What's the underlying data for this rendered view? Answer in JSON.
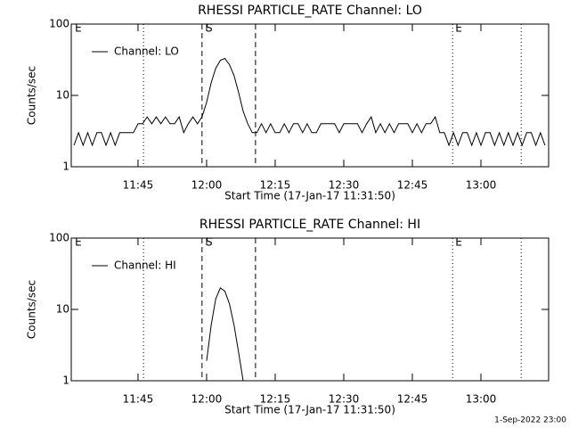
{
  "chart_data": [
    {
      "type": "line",
      "title": "RHESSI PARTICLE_RATE Channel: LO",
      "xlabel": "Start Time (17-Jan-17 11:31:50)",
      "ylabel": "Counts/sec",
      "log_y": true,
      "ylim": [
        1,
        100
      ],
      "yticks": [
        1,
        10,
        100
      ],
      "xlim": [
        690.4,
        794.8
      ],
      "xticks": [
        {
          "value": 705,
          "label": "11:45"
        },
        {
          "value": 720,
          "label": "12:00"
        },
        {
          "value": 735,
          "label": "12:15"
        },
        {
          "value": 750,
          "label": "12:30"
        },
        {
          "value": 765,
          "label": "12:45"
        },
        {
          "value": 780,
          "label": "13:00"
        }
      ],
      "legend": "upper left",
      "vlines": [
        {
          "x": 706.2,
          "style": "dotted"
        },
        {
          "x": 719.0,
          "style": "dashed"
        },
        {
          "x": 730.7,
          "style": "dashed"
        },
        {
          "x": 773.8,
          "style": "dotted"
        },
        {
          "x": 788.8,
          "style": "dotted"
        }
      ],
      "annotations": [
        {
          "x": 691.2,
          "label": "E"
        },
        {
          "x": 719.8,
          "label": "S"
        },
        {
          "x": 774.4,
          "label": "E"
        }
      ],
      "x": [
        691,
        692,
        693,
        694,
        695,
        696,
        697,
        698,
        699,
        700,
        701,
        702,
        703,
        704,
        705,
        706,
        707,
        708,
        709,
        710,
        711,
        712,
        713,
        714,
        715,
        716,
        717,
        718,
        719,
        720,
        721,
        722,
        723,
        724,
        725,
        726,
        727,
        728,
        729,
        730,
        731,
        732,
        733,
        734,
        735,
        736,
        737,
        738,
        739,
        740,
        741,
        742,
        743,
        744,
        745,
        746,
        747,
        748,
        749,
        750,
        751,
        752,
        753,
        754,
        755,
        756,
        757,
        758,
        759,
        760,
        761,
        762,
        763,
        764,
        765,
        766,
        767,
        768,
        769,
        770,
        771,
        772,
        773,
        774,
        775,
        776,
        777,
        778,
        779,
        780,
        781,
        782,
        783,
        784,
        785,
        786,
        787,
        788,
        789,
        790,
        791,
        792,
        793,
        794
      ],
      "series": [
        {
          "name": "Channel: LO",
          "color": "#000000",
          "values": [
            2,
            3,
            2,
            3,
            2,
            3,
            3,
            2,
            3,
            2,
            3,
            3,
            3,
            3,
            4,
            4,
            5,
            4,
            5,
            4,
            5,
            4,
            4,
            5,
            3,
            4,
            5,
            4,
            5,
            8,
            15,
            24,
            31,
            33,
            27,
            19,
            11,
            6,
            4,
            3,
            3,
            4,
            3,
            4,
            3,
            3,
            4,
            3,
            4,
            4,
            3,
            4,
            3,
            3,
            4,
            4,
            4,
            4,
            3,
            4,
            4,
            4,
            4,
            3,
            4,
            5,
            3,
            4,
            3,
            4,
            3,
            4,
            4,
            4,
            3,
            4,
            3,
            4,
            4,
            5,
            3,
            3,
            2,
            3,
            2,
            3,
            3,
            2,
            3,
            2,
            3,
            3,
            2,
            3,
            2,
            3,
            2,
            3,
            2,
            3,
            3,
            2,
            3,
            2
          ]
        }
      ]
    },
    {
      "type": "line",
      "title": "RHESSI PARTICLE_RATE Channel: HI",
      "xlabel": "Start Time (17-Jan-17 11:31:50)",
      "ylabel": "Counts/sec",
      "log_y": true,
      "ylim": [
        1,
        100
      ],
      "yticks": [
        1,
        10,
        100
      ],
      "xlim": [
        690.4,
        794.8
      ],
      "xticks": [
        {
          "value": 705,
          "label": "11:45"
        },
        {
          "value": 720,
          "label": "12:00"
        },
        {
          "value": 735,
          "label": "12:15"
        },
        {
          "value": 750,
          "label": "12:30"
        },
        {
          "value": 765,
          "label": "12:45"
        },
        {
          "value": 780,
          "label": "13:00"
        }
      ],
      "legend": "upper left",
      "vlines": [
        {
          "x": 706.2,
          "style": "dotted"
        },
        {
          "x": 719.0,
          "style": "dashed"
        },
        {
          "x": 730.7,
          "style": "dashed"
        },
        {
          "x": 773.8,
          "style": "dotted"
        },
        {
          "x": 788.8,
          "style": "dotted"
        }
      ],
      "annotations": [
        {
          "x": 691.2,
          "label": "E"
        },
        {
          "x": 719.8,
          "label": "S"
        },
        {
          "x": 774.4,
          "label": "E"
        }
      ],
      "x": [
        720,
        721,
        722,
        723,
        724,
        725,
        726,
        727,
        728
      ],
      "series": [
        {
          "name": "Channel: HI",
          "color": "#000000",
          "values": [
            1.9,
            6,
            14,
            20,
            18,
            12,
            6,
            2.5,
            1
          ]
        }
      ]
    }
  ],
  "footer": "1-Sep-2022 23:00"
}
